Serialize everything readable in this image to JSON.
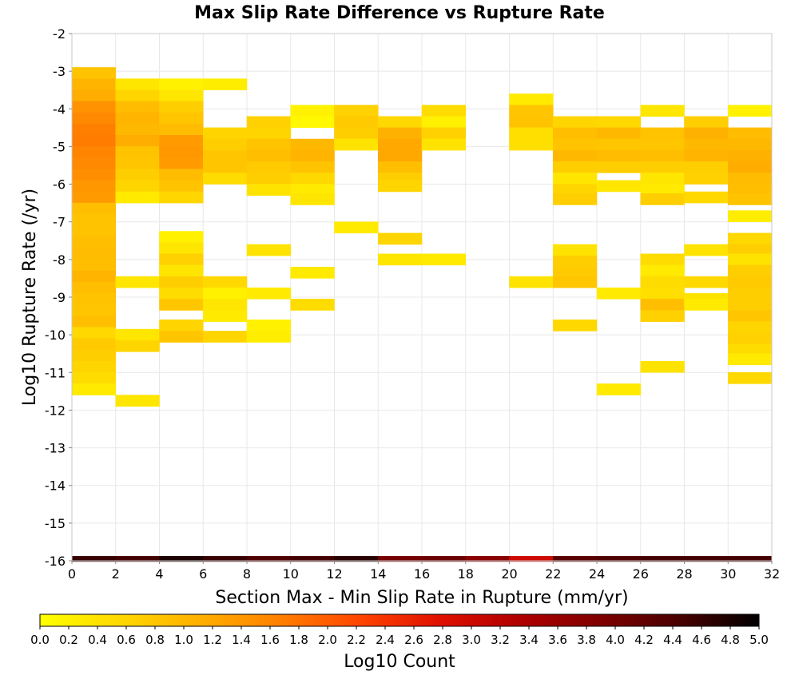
{
  "chart_data": {
    "type": "heatmap",
    "title": "Max Slip Rate Difference vs Rupture Rate",
    "xlabel": "Section Max - Min Slip Rate in Rupture (mm/yr)",
    "ylabel": "Log10 Rupture Rate (/yr)",
    "xlim": [
      0,
      32
    ],
    "ylim": [
      -16,
      -2
    ],
    "x_ticks": [
      "0",
      "2",
      "4",
      "6",
      "8",
      "10",
      "12",
      "14",
      "16",
      "18",
      "20",
      "22",
      "24",
      "26",
      "28",
      "30",
      "32"
    ],
    "y_ticks": [
      "-2",
      "-3",
      "-4",
      "-5",
      "-6",
      "-7",
      "-8",
      "-9",
      "-10",
      "-11",
      "-12",
      "-13",
      "-14",
      "-15",
      "-16"
    ],
    "x_bin_width": 2,
    "y_bin_height": 0.3,
    "grid": true,
    "colorbar": {
      "label": "Log10 Count",
      "range": [
        0.0,
        5.0
      ],
      "ticks": [
        "0.0",
        "0.2",
        "0.4",
        "0.6",
        "0.8",
        "1.0",
        "1.2",
        "1.4",
        "1.6",
        "1.8",
        "2.0",
        "2.2",
        "2.4",
        "2.6",
        "2.8",
        "3.0",
        "3.2",
        "3.4",
        "3.6",
        "3.8",
        "4.0",
        "4.2",
        "4.4",
        "4.6",
        "4.8",
        "5.0"
      ],
      "stops": [
        "#ffff00",
        "#ffd800",
        "#ffb000",
        "#ff7f00",
        "#ff4500",
        "#e01000",
        "#b00000",
        "#800000",
        "#4a0000",
        "#000000"
      ]
    },
    "cells": [
      {
        "x": 1,
        "y": -3.05,
        "v": 0.85
      },
      {
        "x": 1,
        "y": -3.35,
        "v": 1.05
      },
      {
        "x": 1,
        "y": -3.65,
        "v": 1.15
      },
      {
        "x": 1,
        "y": -3.95,
        "v": 1.45
      },
      {
        "x": 1,
        "y": -4.25,
        "v": 1.55
      },
      {
        "x": 1,
        "y": -4.55,
        "v": 1.65
      },
      {
        "x": 1,
        "y": -4.85,
        "v": 1.7
      },
      {
        "x": 1,
        "y": -5.15,
        "v": 1.6
      },
      {
        "x": 1,
        "y": -5.45,
        "v": 1.55
      },
      {
        "x": 1,
        "y": -5.75,
        "v": 1.5
      },
      {
        "x": 1,
        "y": -6.05,
        "v": 1.4
      },
      {
        "x": 1,
        "y": -6.35,
        "v": 1.35
      },
      {
        "x": 1,
        "y": -6.65,
        "v": 0.9
      },
      {
        "x": 1,
        "y": -6.95,
        "v": 0.85
      },
      {
        "x": 1,
        "y": -7.25,
        "v": 0.85
      },
      {
        "x": 1,
        "y": -7.55,
        "v": 0.9
      },
      {
        "x": 1,
        "y": -7.85,
        "v": 0.95
      },
      {
        "x": 1,
        "y": -8.15,
        "v": 0.9
      },
      {
        "x": 1,
        "y": -8.45,
        "v": 1.05
      },
      {
        "x": 1,
        "y": -8.75,
        "v": 0.9
      },
      {
        "x": 1,
        "y": -9.05,
        "v": 0.85
      },
      {
        "x": 1,
        "y": -9.35,
        "v": 0.8
      },
      {
        "x": 1,
        "y": -9.65,
        "v": 0.9
      },
      {
        "x": 1,
        "y": -9.95,
        "v": 0.55
      },
      {
        "x": 1,
        "y": -10.25,
        "v": 0.75
      },
      {
        "x": 1,
        "y": -10.55,
        "v": 0.7
      },
      {
        "x": 1,
        "y": -10.85,
        "v": 0.6
      },
      {
        "x": 1,
        "y": -11.15,
        "v": 0.5
      },
      {
        "x": 1,
        "y": -11.45,
        "v": 0.3
      },
      {
        "x": 3,
        "y": -3.35,
        "v": 0.35
      },
      {
        "x": 3,
        "y": -3.65,
        "v": 0.6
      },
      {
        "x": 3,
        "y": -3.95,
        "v": 0.95
      },
      {
        "x": 3,
        "y": -4.25,
        "v": 1.05
      },
      {
        "x": 3,
        "y": -4.55,
        "v": 1.0
      },
      {
        "x": 3,
        "y": -4.85,
        "v": 1.15
      },
      {
        "x": 3,
        "y": -5.15,
        "v": 0.85
      },
      {
        "x": 3,
        "y": -5.45,
        "v": 0.8
      },
      {
        "x": 3,
        "y": -5.75,
        "v": 0.7
      },
      {
        "x": 3,
        "y": -6.05,
        "v": 0.6
      },
      {
        "x": 3,
        "y": -6.35,
        "v": 0.3
      },
      {
        "x": 3,
        "y": -8.6,
        "v": 0.35
      },
      {
        "x": 3,
        "y": -10.0,
        "v": 0.35
      },
      {
        "x": 3,
        "y": -10.3,
        "v": 0.6
      },
      {
        "x": 3,
        "y": -11.75,
        "v": 0.35
      },
      {
        "x": 5,
        "y": -3.35,
        "v": 0.2
      },
      {
        "x": 5,
        "y": -3.65,
        "v": 0.35
      },
      {
        "x": 5,
        "y": -3.95,
        "v": 0.7
      },
      {
        "x": 5,
        "y": -4.25,
        "v": 0.8
      },
      {
        "x": 5,
        "y": -4.55,
        "v": 0.95
      },
      {
        "x": 5,
        "y": -4.85,
        "v": 1.35
      },
      {
        "x": 5,
        "y": -5.15,
        "v": 1.4
      },
      {
        "x": 5,
        "y": -5.45,
        "v": 1.35
      },
      {
        "x": 5,
        "y": -5.75,
        "v": 0.95
      },
      {
        "x": 5,
        "y": -6.05,
        "v": 0.85
      },
      {
        "x": 5,
        "y": -6.35,
        "v": 0.6
      },
      {
        "x": 5,
        "y": -7.4,
        "v": 0.2
      },
      {
        "x": 5,
        "y": -7.7,
        "v": 0.35
      },
      {
        "x": 5,
        "y": -8.0,
        "v": 0.65
      },
      {
        "x": 5,
        "y": -8.3,
        "v": 0.35
      },
      {
        "x": 5,
        "y": -8.6,
        "v": 0.7
      },
      {
        "x": 5,
        "y": -8.9,
        "v": 0.5
      },
      {
        "x": 5,
        "y": -9.2,
        "v": 0.8
      },
      {
        "x": 5,
        "y": -9.75,
        "v": 0.6
      },
      {
        "x": 5,
        "y": -10.05,
        "v": 0.8
      },
      {
        "x": 7,
        "y": -3.35,
        "v": 0.25
      },
      {
        "x": 7,
        "y": -4.65,
        "v": 0.6
      },
      {
        "x": 7,
        "y": -4.95,
        "v": 0.7
      },
      {
        "x": 7,
        "y": -5.25,
        "v": 0.8
      },
      {
        "x": 7,
        "y": -5.55,
        "v": 0.8
      },
      {
        "x": 7,
        "y": -5.85,
        "v": 0.5
      },
      {
        "x": 7,
        "y": -8.6,
        "v": 0.55
      },
      {
        "x": 7,
        "y": -8.9,
        "v": 0.2
      },
      {
        "x": 7,
        "y": -9.2,
        "v": 0.35
      },
      {
        "x": 7,
        "y": -9.5,
        "v": 0.3
      },
      {
        "x": 7,
        "y": -10.05,
        "v": 0.6
      },
      {
        "x": 9,
        "y": -4.35,
        "v": 0.65
      },
      {
        "x": 9,
        "y": -4.65,
        "v": 0.6
      },
      {
        "x": 9,
        "y": -4.95,
        "v": 0.85
      },
      {
        "x": 9,
        "y": -5.25,
        "v": 0.9
      },
      {
        "x": 9,
        "y": -5.55,
        "v": 0.75
      },
      {
        "x": 9,
        "y": -5.85,
        "v": 0.7
      },
      {
        "x": 9,
        "y": -6.15,
        "v": 0.4
      },
      {
        "x": 9,
        "y": -7.75,
        "v": 0.4
      },
      {
        "x": 9,
        "y": -8.9,
        "v": 0.3
      },
      {
        "x": 9,
        "y": -9.75,
        "v": 0.2
      },
      {
        "x": 9,
        "y": -10.05,
        "v": 0.25
      },
      {
        "x": 11,
        "y": -4.05,
        "v": 0.2
      },
      {
        "x": 11,
        "y": -4.35,
        "v": 0.1
      },
      {
        "x": 11,
        "y": -4.95,
        "v": 1.0
      },
      {
        "x": 11,
        "y": -5.25,
        "v": 1.05
      },
      {
        "x": 11,
        "y": -5.55,
        "v": 0.85
      },
      {
        "x": 11,
        "y": -5.85,
        "v": 0.55
      },
      {
        "x": 11,
        "y": -6.15,
        "v": 0.3
      },
      {
        "x": 11,
        "y": -6.4,
        "v": 0.35
      },
      {
        "x": 11,
        "y": -8.35,
        "v": 0.3
      },
      {
        "x": 11,
        "y": -9.2,
        "v": 0.5
      },
      {
        "x": 13,
        "y": -4.05,
        "v": 0.65
      },
      {
        "x": 13,
        "y": -4.35,
        "v": 0.75
      },
      {
        "x": 13,
        "y": -4.65,
        "v": 0.7
      },
      {
        "x": 13,
        "y": -4.95,
        "v": 0.4
      },
      {
        "x": 13,
        "y": -7.15,
        "v": 0.3
      },
      {
        "x": 15,
        "y": -4.35,
        "v": 0.55
      },
      {
        "x": 15,
        "y": -4.65,
        "v": 1.1
      },
      {
        "x": 15,
        "y": -4.95,
        "v": 1.2
      },
      {
        "x": 15,
        "y": -5.25,
        "v": 1.2
      },
      {
        "x": 15,
        "y": -5.55,
        "v": 0.9
      },
      {
        "x": 15,
        "y": -5.85,
        "v": 0.7
      },
      {
        "x": 15,
        "y": -6.05,
        "v": 0.6
      },
      {
        "x": 15,
        "y": -7.45,
        "v": 0.6
      },
      {
        "x": 15,
        "y": -8.0,
        "v": 0.35
      },
      {
        "x": 17,
        "y": -4.05,
        "v": 0.5
      },
      {
        "x": 17,
        "y": -4.35,
        "v": 0.2
      },
      {
        "x": 17,
        "y": -4.65,
        "v": 0.65
      },
      {
        "x": 17,
        "y": -4.95,
        "v": 0.4
      },
      {
        "x": 17,
        "y": -8.0,
        "v": 0.3
      },
      {
        "x": 21,
        "y": -3.75,
        "v": 0.3
      },
      {
        "x": 21,
        "y": -4.05,
        "v": 0.8
      },
      {
        "x": 21,
        "y": -4.35,
        "v": 0.85
      },
      {
        "x": 21,
        "y": -4.65,
        "v": 0.45
      },
      {
        "x": 21,
        "y": -4.95,
        "v": 0.45
      },
      {
        "x": 21,
        "y": -8.6,
        "v": 0.4
      },
      {
        "x": 23,
        "y": -4.35,
        "v": 0.6
      },
      {
        "x": 23,
        "y": -4.65,
        "v": 0.9
      },
      {
        "x": 23,
        "y": -4.95,
        "v": 0.85
      },
      {
        "x": 23,
        "y": -5.25,
        "v": 1.0
      },
      {
        "x": 23,
        "y": -5.55,
        "v": 0.7
      },
      {
        "x": 23,
        "y": -5.85,
        "v": 0.35
      },
      {
        "x": 23,
        "y": -6.15,
        "v": 0.6
      },
      {
        "x": 23,
        "y": -6.4,
        "v": 0.7
      },
      {
        "x": 23,
        "y": -7.75,
        "v": 0.4
      },
      {
        "x": 23,
        "y": -8.05,
        "v": 0.7
      },
      {
        "x": 23,
        "y": -8.35,
        "v": 0.75
      },
      {
        "x": 23,
        "y": -8.6,
        "v": 0.8
      },
      {
        "x": 23,
        "y": -9.75,
        "v": 0.55
      },
      {
        "x": 25,
        "y": -4.35,
        "v": 0.55
      },
      {
        "x": 25,
        "y": -4.65,
        "v": 1.0
      },
      {
        "x": 25,
        "y": -4.95,
        "v": 0.8
      },
      {
        "x": 25,
        "y": -5.25,
        "v": 0.95
      },
      {
        "x": 25,
        "y": -5.55,
        "v": 0.7
      },
      {
        "x": 25,
        "y": -6.05,
        "v": 0.35
      },
      {
        "x": 25,
        "y": -8.9,
        "v": 0.3
      },
      {
        "x": 25,
        "y": -11.45,
        "v": 0.3
      },
      {
        "x": 27,
        "y": -4.05,
        "v": 0.35
      },
      {
        "x": 27,
        "y": -4.65,
        "v": 0.85
      },
      {
        "x": 27,
        "y": -4.95,
        "v": 0.8
      },
      {
        "x": 27,
        "y": -5.25,
        "v": 0.9
      },
      {
        "x": 27,
        "y": -5.55,
        "v": 0.7
      },
      {
        "x": 27,
        "y": -5.85,
        "v": 0.35
      },
      {
        "x": 27,
        "y": -6.15,
        "v": 0.3
      },
      {
        "x": 27,
        "y": -6.4,
        "v": 0.7
      },
      {
        "x": 27,
        "y": -8.0,
        "v": 0.5
      },
      {
        "x": 27,
        "y": -8.3,
        "v": 0.3
      },
      {
        "x": 27,
        "y": -8.6,
        "v": 0.5
      },
      {
        "x": 27,
        "y": -8.9,
        "v": 0.45
      },
      {
        "x": 27,
        "y": -9.2,
        "v": 0.9
      },
      {
        "x": 27,
        "y": -9.5,
        "v": 0.65
      },
      {
        "x": 27,
        "y": -10.85,
        "v": 0.4
      },
      {
        "x": 29,
        "y": -4.35,
        "v": 0.7
      },
      {
        "x": 29,
        "y": -4.65,
        "v": 1.1
      },
      {
        "x": 29,
        "y": -4.95,
        "v": 1.0
      },
      {
        "x": 29,
        "y": -5.25,
        "v": 1.05
      },
      {
        "x": 29,
        "y": -5.55,
        "v": 0.7
      },
      {
        "x": 29,
        "y": -5.85,
        "v": 0.65
      },
      {
        "x": 29,
        "y": -6.35,
        "v": 0.55
      },
      {
        "x": 29,
        "y": -7.75,
        "v": 0.4
      },
      {
        "x": 29,
        "y": -8.6,
        "v": 0.55
      },
      {
        "x": 29,
        "y": -9.05,
        "v": 0.4
      },
      {
        "x": 29,
        "y": -9.2,
        "v": 0.3
      },
      {
        "x": 31,
        "y": -4.05,
        "v": 0.2
      },
      {
        "x": 31,
        "y": -4.65,
        "v": 0.95
      },
      {
        "x": 31,
        "y": -4.95,
        "v": 1.0
      },
      {
        "x": 31,
        "y": -5.25,
        "v": 1.1
      },
      {
        "x": 31,
        "y": -5.55,
        "v": 1.15
      },
      {
        "x": 31,
        "y": -5.85,
        "v": 0.95
      },
      {
        "x": 31,
        "y": -6.15,
        "v": 0.9
      },
      {
        "x": 31,
        "y": -6.4,
        "v": 0.85
      },
      {
        "x": 31,
        "y": -6.85,
        "v": 0.25
      },
      {
        "x": 31,
        "y": -7.45,
        "v": 0.55
      },
      {
        "x": 31,
        "y": -7.75,
        "v": 0.7
      },
      {
        "x": 31,
        "y": -8.0,
        "v": 0.4
      },
      {
        "x": 31,
        "y": -8.3,
        "v": 0.7
      },
      {
        "x": 31,
        "y": -8.6,
        "v": 0.75
      },
      {
        "x": 31,
        "y": -8.9,
        "v": 0.7
      },
      {
        "x": 31,
        "y": -9.2,
        "v": 0.7
      },
      {
        "x": 31,
        "y": -9.5,
        "v": 0.8
      },
      {
        "x": 31,
        "y": -9.8,
        "v": 0.6
      },
      {
        "x": 31,
        "y": -10.1,
        "v": 0.65
      },
      {
        "x": 31,
        "y": -10.4,
        "v": 0.5
      },
      {
        "x": 31,
        "y": -10.65,
        "v": 0.3
      },
      {
        "x": 31,
        "y": -11.15,
        "v": 0.55
      }
    ],
    "bottom_band": {
      "y": -15.95,
      "values": [
        4.6,
        4.5,
        4.8,
        4.6,
        4.4,
        4.5,
        4.7,
        4.0,
        4.1,
        3.8,
        3.0,
        4.3,
        4.4,
        4.5,
        4.5,
        4.5
      ]
    }
  }
}
